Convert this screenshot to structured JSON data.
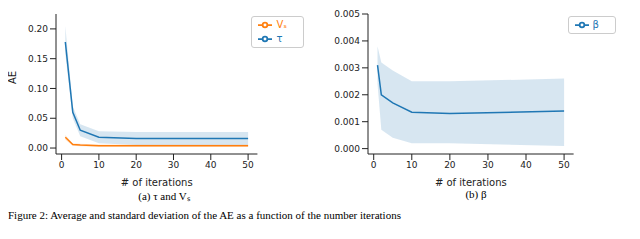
{
  "caption": "Figure 2: Average and standard deviation of the AE as a function of the number iterations",
  "chart_data": [
    {
      "type": "line",
      "title": "(a) τ and Vₛ",
      "x_label": "# of iterations",
      "y_label": "AE",
      "x": [
        1,
        3,
        5,
        10,
        20,
        50
      ],
      "series": [
        {
          "name": "τ",
          "color": "#1f77b4",
          "values": [
            0.178,
            0.06,
            0.03,
            0.018,
            0.016,
            0.016
          ],
          "band_low": [
            0.158,
            0.05,
            0.02,
            0.008,
            0.005,
            0.005
          ],
          "band_high": [
            0.205,
            0.07,
            0.04,
            0.028,
            0.027,
            0.027
          ]
        },
        {
          "name": "Vₛ",
          "color": "#ff7f0e",
          "values": [
            0.018,
            0.006,
            0.005,
            0.004,
            0.004,
            0.004
          ],
          "band_low": [
            0.014,
            0.004,
            0.003,
            0.002,
            0.002,
            0.002
          ],
          "band_high": [
            0.022,
            0.008,
            0.007,
            0.006,
            0.006,
            0.006
          ]
        }
      ],
      "xlim": [
        -1.5,
        52.5
      ],
      "xticks": [
        0,
        10,
        20,
        30,
        40,
        50
      ],
      "ylim": [
        -0.01,
        0.225
      ],
      "yticks": [
        {
          "value": 0,
          "label": "0.00"
        },
        0.05,
        {
          "value": 0.1,
          "label": "0.10"
        },
        0.15,
        {
          "value": 0.2,
          "label": "0.20"
        }
      ],
      "legend": "upper right",
      "grid": false
    },
    {
      "type": "line",
      "title": "(b) β",
      "x_label": "# of iterations",
      "x": [
        1,
        2,
        5,
        10,
        20,
        50
      ],
      "series": [
        {
          "name": "β",
          "color": "#1f77b4",
          "values": [
            0.0031,
            0.002,
            0.0017,
            0.00135,
            0.0013,
            0.0014
          ],
          "band_low": [
            0.0024,
            0.0007,
            0.0004,
            0.0002,
            0.0002,
            0.0001
          ],
          "band_high": [
            0.0038,
            0.0032,
            0.0029,
            0.0025,
            0.0025,
            0.0026
          ]
        }
      ],
      "xlim": [
        -1.5,
        52.5
      ],
      "xticks": [
        0,
        10,
        20,
        30,
        40,
        50
      ],
      "ylim": [
        -0.0002,
        0.005
      ],
      "yticks": [
        {
          "value": 0,
          "label": "0.000"
        },
        0.001,
        0.002,
        0.003,
        0.004,
        0.005
      ],
      "legend": "upper right",
      "grid": false
    }
  ]
}
